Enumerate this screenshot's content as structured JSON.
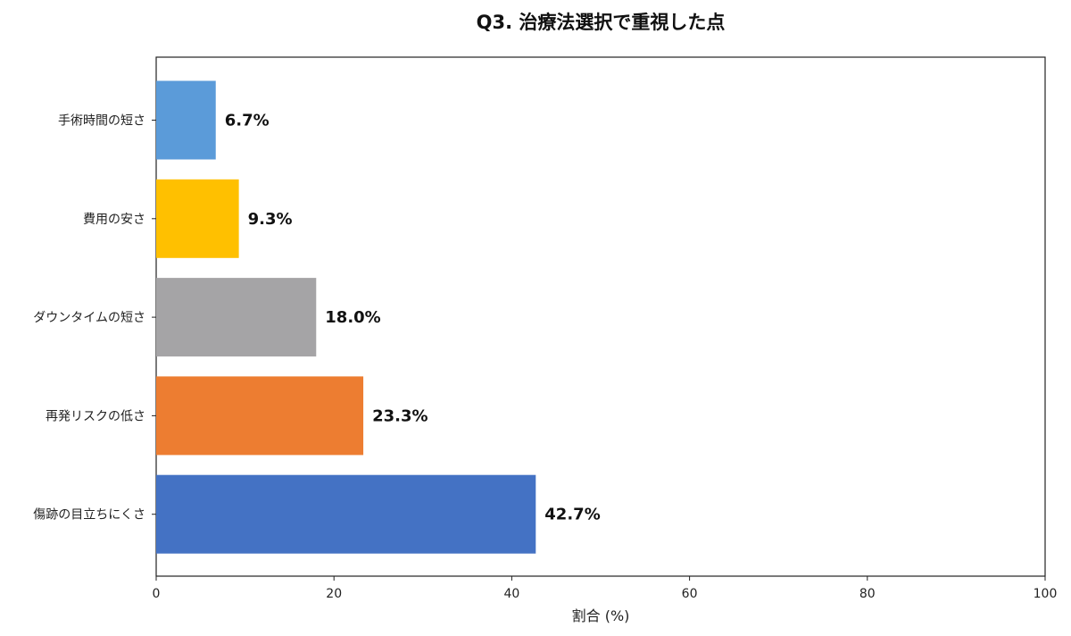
{
  "chart_data": {
    "type": "bar",
    "orientation": "horizontal",
    "title": "Q3. 治療法選択で重視した点",
    "xlabel": "割合 (%)",
    "ylabel": "",
    "xlim": [
      0,
      100
    ],
    "xticks": [
      0,
      20,
      40,
      60,
      80,
      100
    ],
    "grid": false,
    "categories": [
      "手術時間の短さ",
      "費用の安さ",
      "ダウンタイムの短さ",
      "再発リスクの低さ",
      "傷跡の目立ちにくさ"
    ],
    "values": [
      6.7,
      9.3,
      18.0,
      23.3,
      42.7
    ],
    "data_labels": [
      "6.7%",
      "9.3%",
      "18.0%",
      "23.3%",
      "42.7%"
    ],
    "colors": [
      "#5b9bd9",
      "#ffc000",
      "#a5a4a6",
      "#ed7d31",
      "#4472c4"
    ]
  }
}
